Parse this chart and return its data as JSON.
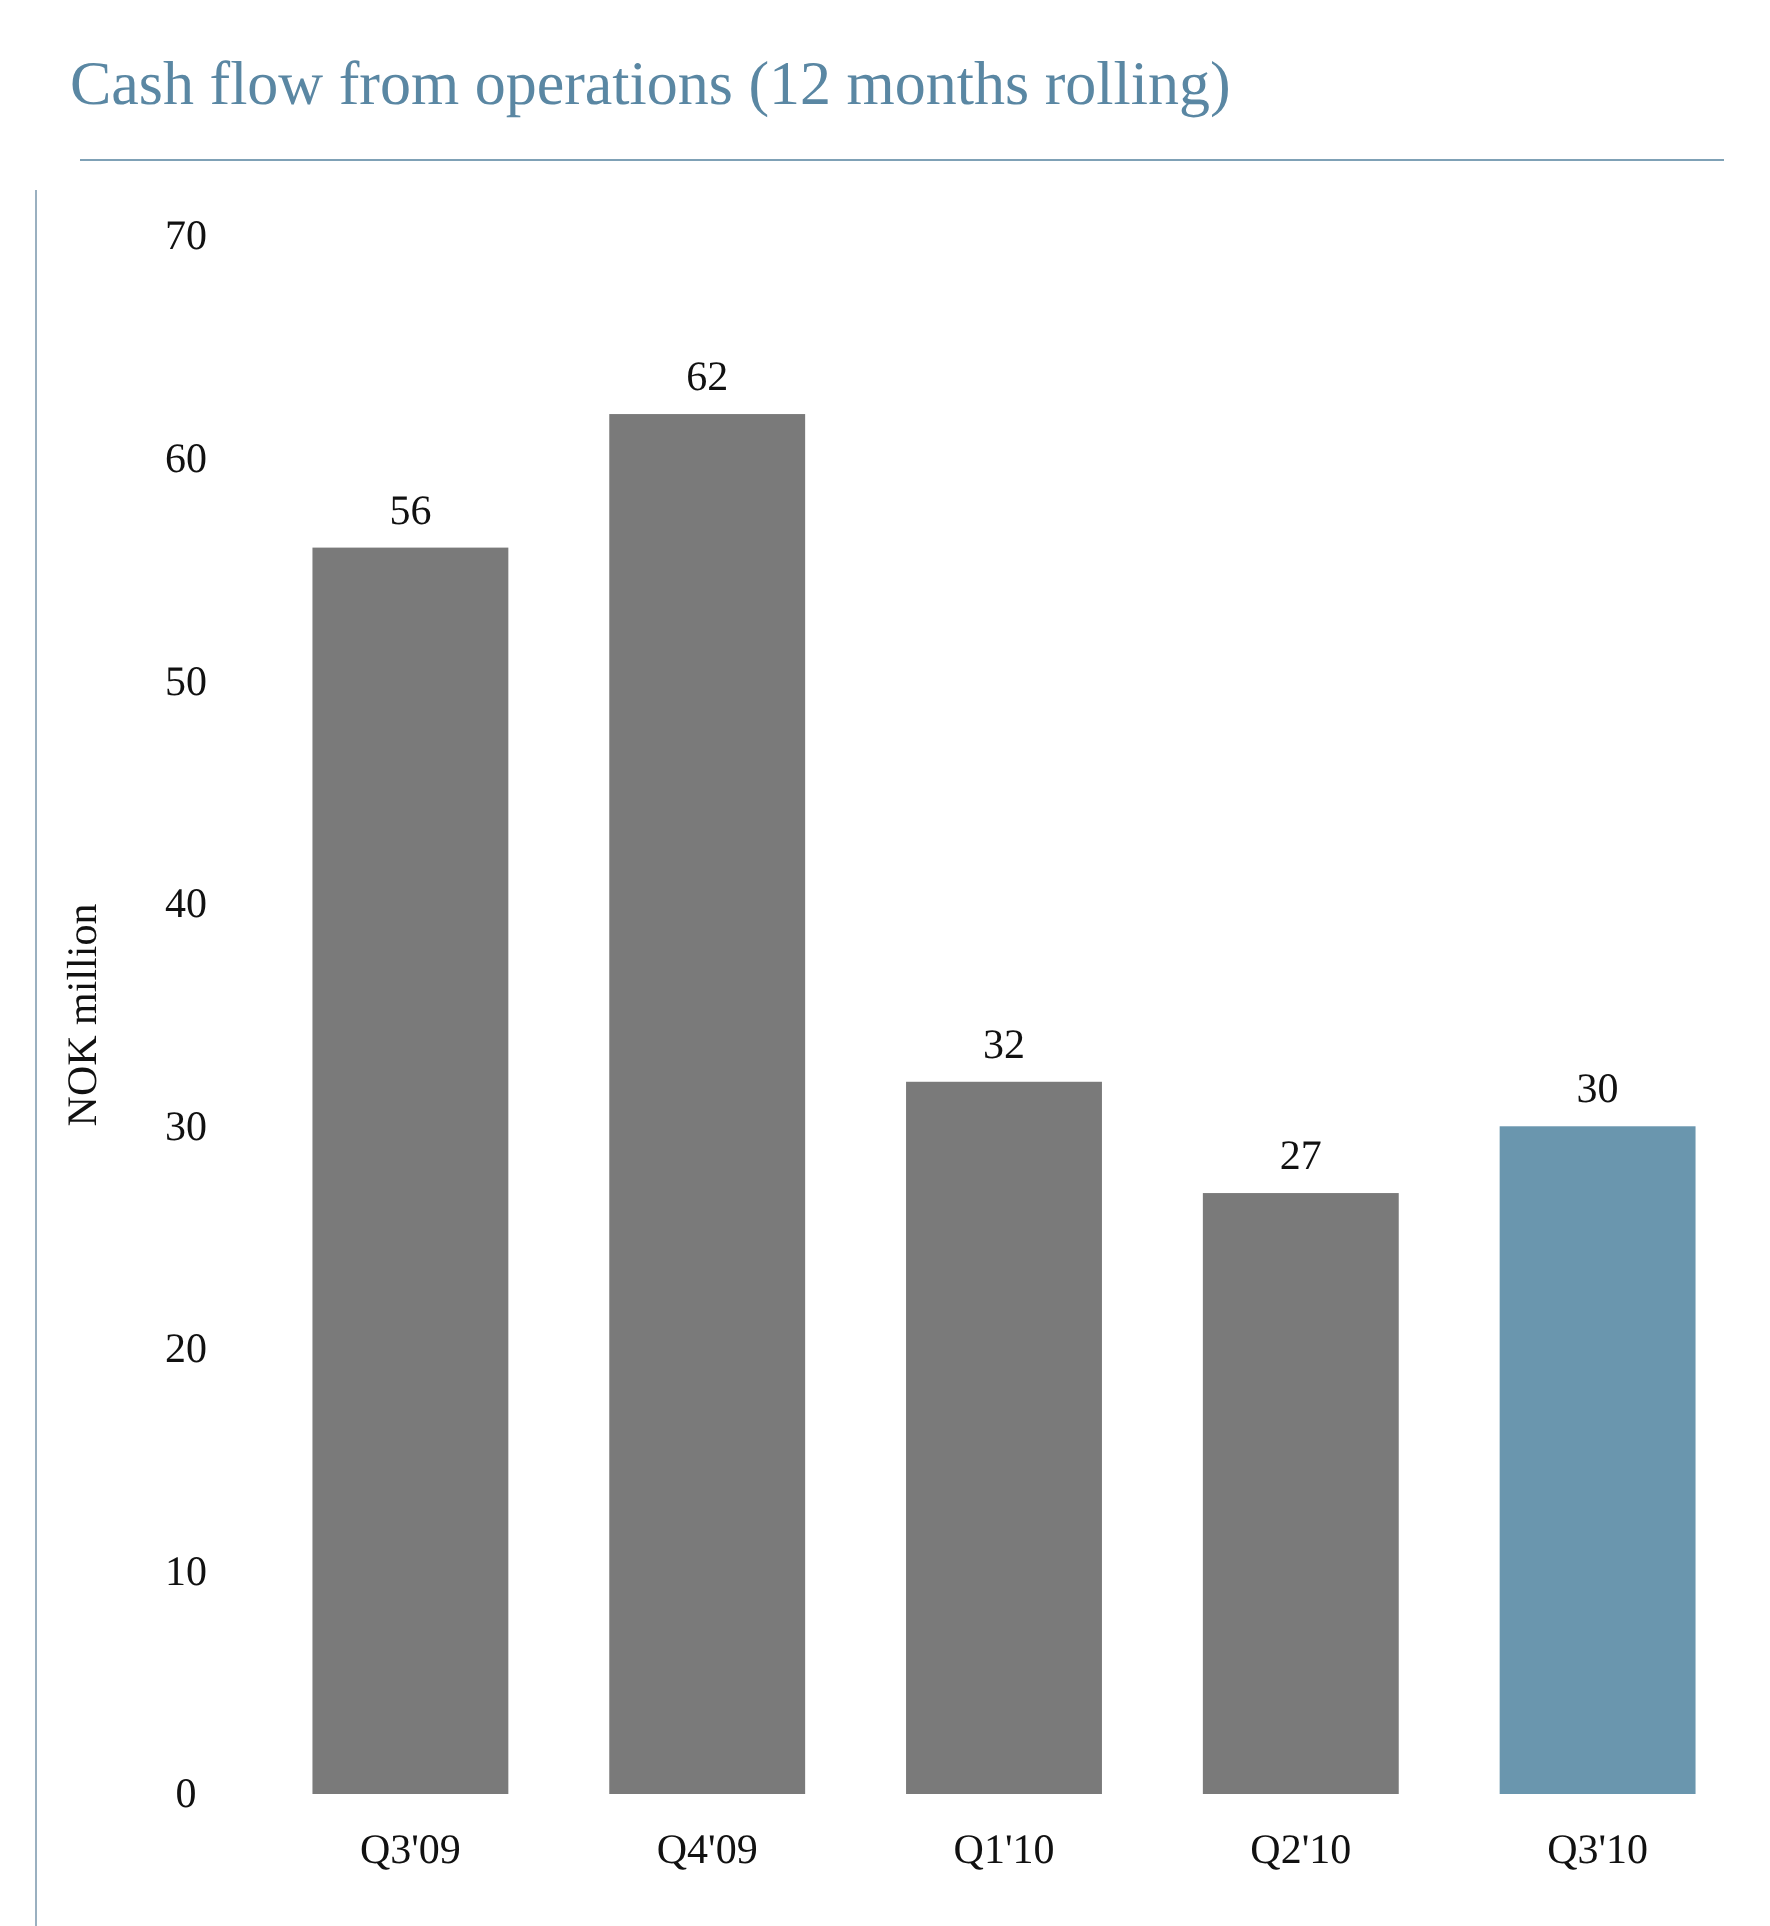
{
  "chart_data": {
    "type": "bar",
    "title": "Cash flow from operations (12 months rolling)",
    "ylabel": "NOK million",
    "categories": [
      "Q3'09",
      "Q4'09",
      "Q1'10",
      "Q2'10",
      "Q3'10"
    ],
    "values": [
      56,
      62,
      32,
      27,
      30
    ],
    "colors": [
      "#7a7a7a",
      "#7a7a7a",
      "#7a7a7a",
      "#7a7a7a",
      "#6a96ae"
    ],
    "ylim": [
      0,
      70
    ],
    "yticks": [
      0,
      10,
      20,
      30,
      40,
      50,
      60,
      70
    ],
    "data_labels": true
  }
}
